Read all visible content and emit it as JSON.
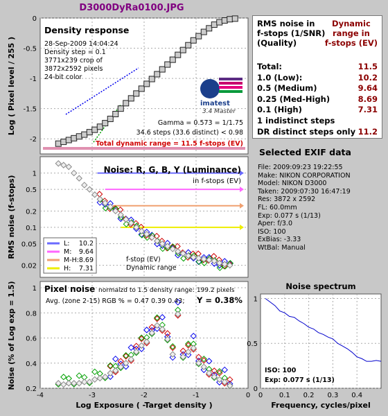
{
  "header": {
    "title": "D3000DyRa0100.JPG"
  },
  "density_panel": {
    "title": "Density response",
    "info": [
      "28-Sep-2009 14:04:24",
      "Density step = 0.1",
      "3771x239 crop of",
      "3872x2592 pixels",
      "24-bit color"
    ],
    "ylabel": "Log ( Pixel level / 255 )",
    "yticks": [
      "0",
      "-0.5",
      "-1",
      "-1.5",
      "-2"
    ],
    "gamma_text": "Gamma = 0.573 = 1/1.75",
    "steps_text": "34.6 steps (33.6 distinct) < 0.98",
    "total_dr_text": "Total dynamic range = 11.5 f-stops (EV)",
    "logo_text": "imatest",
    "logo_sub": "3.4  Master"
  },
  "noise_panel": {
    "title": "Noise: R, G, B, Y (Luminance)",
    "subtitle": "in f-stops (EV)",
    "ylabel": "RMS noise (f-stops)",
    "yticks": [
      "1",
      "0.5",
      "0.2",
      "0.1",
      "0.05",
      "0.02"
    ],
    "legend": [
      {
        "label": "L:",
        "value": "10.2",
        "color": "#6a6aff"
      },
      {
        "label": "M:",
        "value": "9.64",
        "color": "#ff66ff"
      },
      {
        "label": "M-H:",
        "value": "8.69",
        "color": "#f0a070"
      },
      {
        "label": "H:",
        "value": "7.31",
        "color": "#eeee00"
      }
    ],
    "legend_note_1": "f-stop (EV)",
    "legend_note_2": "Dynamic range"
  },
  "pixel_panel": {
    "title": "Pixel noise",
    "norm_text": "normalzd to 1.5 density range: 199.2 pixels",
    "avg_text": "Avg. (zone 2-15) RGB % = 0.47  0.39  0.43;",
    "y_text": "Y = 0.38%",
    "ylabel": "Noise (% of Log exp = 1.5)",
    "yticks": [
      "1",
      "0.8",
      "0.6",
      "0.4",
      "0.2"
    ],
    "xticks": [
      "-4",
      "-3",
      "-2",
      "-1",
      "0"
    ],
    "xlabel": "Log Exposure ( -Target density )"
  },
  "rms_table": {
    "header_left": "RMS noise in f-stops (1/SNR) (Quality)",
    "header_left_lines": [
      "RMS noise in",
      "f-stops (1/SNR)",
      "(Quality)"
    ],
    "header_right_lines": [
      "Dynamic",
      "range in",
      "f-stops (EV)"
    ],
    "rows": [
      {
        "label": "Total:",
        "value": "11.5"
      },
      {
        "label": "1.0   (Low):",
        "value": "10.2"
      },
      {
        "label": "0.5   (Medium)",
        "value": "9.64"
      },
      {
        "label": "0.25 (Med-High)",
        "value": "8.69"
      },
      {
        "label": "0.1   (High)",
        "value": "7.31"
      },
      {
        "label": "1 indistinct steps",
        "value": ""
      },
      {
        "label": "DR distinct steps only",
        "value": "11.2"
      }
    ]
  },
  "exif": {
    "title": "Selected EXIF data",
    "lines": [
      "File:  2009:09:23 19:22:55",
      "Make:  NIKON CORPORATION",
      "Model: NIKON D3000",
      "Taken: 2009:07:30 16:47:19",
      "Res:   3872 x 2592",
      "FL:  60.0mm",
      "Exp:  0.077 s  (1/13)",
      "Aper:  f/3.0",
      "ISO:   100",
      "ExBias: -3.33",
      "WtBal: Manual"
    ]
  },
  "spectrum": {
    "title": "Noise spectrum",
    "xlabel": "Frequency, cycles/pixel",
    "yticks": [
      "1",
      "0.5",
      "0"
    ],
    "xticks": [
      "0",
      "0.1",
      "0.2",
      "0.3",
      "0.4"
    ],
    "iso_text": "ISO:    100",
    "exp_text": "Exp:  0.077 s   (1/13)"
  },
  "colors": {
    "title": "#800080",
    "dark_red": "#8b0000",
    "red": "#d00000",
    "green": "#00a000",
    "blue": "#0000ee",
    "low": "#6a6aff",
    "medium": "#ff66ff",
    "med_high": "#f0a070",
    "high": "#eeee00"
  },
  "chart_data": [
    {
      "type": "line",
      "title": "Density response",
      "xlabel": "Log Exposure ( -Target density )",
      "ylabel": "Log ( Pixel level / 255 )",
      "xlim": [
        -4,
        0
      ],
      "ylim": [
        -2.25,
        0
      ],
      "series": [
        {
          "name": "",
          "x": [
            -3.65,
            -3.55,
            -3.45,
            -3.35,
            -3.25,
            -3.15,
            -3.05,
            -2.95,
            -2.85,
            -2.75,
            -2.65,
            -2.55,
            -2.45,
            -2.35,
            -2.25,
            -2.15,
            -2.05,
            -1.95,
            -1.85,
            -1.75,
            -1.65,
            -1.55,
            -1.45,
            -1.35,
            -1.25,
            -1.15,
            -1.05,
            -0.95,
            -0.85,
            -0.75,
            -0.65,
            -0.55,
            -0.45,
            -0.35,
            -0.25
          ],
          "y": [
            -2.08,
            -2.05,
            -2.02,
            -1.99,
            -1.96,
            -1.93,
            -1.89,
            -1.85,
            -1.8,
            -1.74,
            -1.67,
            -1.59,
            -1.5,
            -1.41,
            -1.33,
            -1.25,
            -1.17,
            -1.09,
            -1.01,
            -0.93,
            -0.85,
            -0.77,
            -0.69,
            -0.61,
            -0.53,
            -0.45,
            -0.37,
            -0.3,
            -0.23,
            -0.17,
            -0.11,
            -0.07,
            -0.04,
            -0.02,
            -0.01
          ]
        }
      ]
    },
    {
      "type": "scatter",
      "title": "Noise: R, G, B, Y (Luminance)",
      "ylabel": "RMS noise (f-stops)",
      "yscale": "log",
      "ylim": [
        0.012,
        2
      ],
      "xlim": [
        -4,
        0
      ],
      "thresholds": [
        {
          "name": "L:",
          "value": 1.0,
          "dynamic_range": 10.2
        },
        {
          "name": "M:",
          "value": 0.5,
          "dynamic_range": 9.64
        },
        {
          "name": "M-H:",
          "value": 0.25,
          "dynamic_range": 8.69
        },
        {
          "name": "H:",
          "value": 0.1,
          "dynamic_range": 7.31
        }
      ],
      "series": [
        {
          "name": "",
          "x": [
            -3.65,
            -3.55,
            -3.45,
            -3.35,
            -3.25,
            -3.15,
            -3.05,
            -2.95,
            -2.85,
            -2.75,
            -2.65,
            -2.55,
            -2.45,
            -2.35,
            -2.25,
            -2.15,
            -2.05,
            -1.95,
            -1.85,
            -1.75,
            -1.65,
            -1.55,
            -1.45,
            -1.35,
            -1.25,
            -1.15,
            -1.05,
            -0.95,
            -0.85,
            -0.75,
            -0.65,
            -0.55,
            -0.45,
            -0.35
          ],
          "y": [
            1.5,
            1.4,
            1.3,
            1.0,
            0.8,
            0.6,
            0.5,
            0.4,
            0.33,
            0.28,
            0.24,
            0.2,
            0.17,
            0.14,
            0.12,
            0.1,
            0.085,
            0.075,
            0.065,
            0.056,
            0.05,
            0.045,
            0.04,
            0.036,
            0.033,
            0.03,
            0.028,
            0.027,
            0.026,
            0.025,
            0.024,
            0.022,
            0.021,
            0.02
          ]
        }
      ]
    },
    {
      "type": "scatter",
      "title": "Pixel noise",
      "xlabel": "Log Exposure ( -Target density )",
      "ylabel": "Noise (% of Log exp = 1.5)",
      "xlim": [
        -4,
        0
      ],
      "ylim": [
        0.2,
        1.05
      ],
      "series": [
        {
          "name": "",
          "x": [
            -3.65,
            -3.55,
            -3.45,
            -3.35,
            -3.25,
            -3.15,
            -3.05,
            -2.95,
            -2.85,
            -2.75,
            -2.65,
            -2.55,
            -2.45,
            -2.35,
            -2.25,
            -2.15,
            -2.05,
            -1.95,
            -1.85,
            -1.75,
            -1.65,
            -1.55,
            -1.45,
            -1.35,
            -1.25,
            -1.15,
            -1.05,
            -0.95,
            -0.85,
            -0.75,
            -0.65,
            -0.55,
            -0.45,
            -0.35
          ],
          "y": [
            0.27,
            0.26,
            0.27,
            0.27,
            0.27,
            0.28,
            0.28,
            0.3,
            0.31,
            0.32,
            0.35,
            0.37,
            0.4,
            0.43,
            0.46,
            0.52,
            0.57,
            0.6,
            0.67,
            0.73,
            0.7,
            0.62,
            0.5,
            0.82,
            0.48,
            0.52,
            0.55,
            0.43,
            0.4,
            0.35,
            0.32,
            0.3,
            0.28,
            0.25
          ]
        }
      ]
    },
    {
      "type": "line",
      "title": "Noise spectrum",
      "xlabel": "Frequency, cycles/pixel",
      "xlim": [
        0,
        0.5
      ],
      "ylim": [
        0,
        1.05
      ],
      "series": [
        {
          "name": "",
          "x": [
            0.02,
            0.04,
            0.06,
            0.08,
            0.1,
            0.12,
            0.14,
            0.16,
            0.18,
            0.2,
            0.22,
            0.24,
            0.26,
            0.28,
            0.3,
            0.32,
            0.34,
            0.36,
            0.38,
            0.4,
            0.42,
            0.44,
            0.46,
            0.48,
            0.5
          ],
          "y": [
            1.0,
            0.96,
            0.92,
            0.86,
            0.84,
            0.8,
            0.79,
            0.75,
            0.72,
            0.68,
            0.66,
            0.62,
            0.6,
            0.57,
            0.55,
            0.5,
            0.47,
            0.44,
            0.4,
            0.35,
            0.33,
            0.3,
            0.3,
            0.31,
            0.3
          ]
        }
      ]
    }
  ]
}
